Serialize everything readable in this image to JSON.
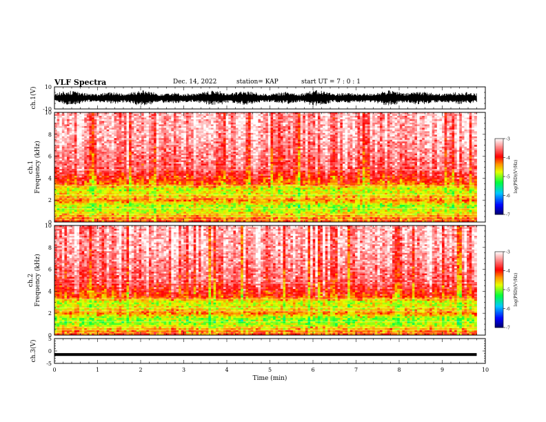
{
  "header": {
    "title": "VLF Spectra",
    "date": "Dec. 14, 2022",
    "station": "station= KAP",
    "start": "start  UT =   7 : 0  : 1"
  },
  "chart_data": [
    {
      "type": "line",
      "name": "waveform-ch1",
      "ylabel": "ch.1(V)",
      "ylim": [
        -10,
        10
      ],
      "yticks": [
        "10",
        "-10"
      ],
      "xlim": [
        0,
        10
      ],
      "data_extent": [
        0,
        9.8
      ],
      "description_values": {
        "mean": 0,
        "envelope": [
          -7,
          7
        ]
      }
    },
    {
      "type": "heatmap",
      "name": "spectrogram-ch1",
      "ylabel": "ch.1",
      "ylabel2": "Frequency (kHz)",
      "ylim": [
        0,
        10
      ],
      "yticks": [
        "0",
        "2",
        "4",
        "6",
        "8",
        "10"
      ],
      "xlim": [
        0,
        10
      ],
      "data_extent": [
        0,
        9.8
      ],
      "freq_profile_log_psd": {
        "kHz": [
          0,
          0.5,
          1,
          1.5,
          2,
          2.5,
          3,
          3.5,
          5,
          8,
          10
        ],
        "value": [
          -4.1,
          -4.4,
          -4.8,
          -4.9,
          -4.3,
          -4.7,
          -4.8,
          -4.2,
          -3.6,
          -3.3,
          -3.3
        ]
      },
      "colorbar": {
        "label": "log(PSD)(V²/Hz)",
        "ticks": [
          "-3",
          "-4",
          "-5",
          "-6",
          "-7"
        ],
        "range": [
          -7,
          -3
        ]
      }
    },
    {
      "type": "heatmap",
      "name": "spectrogram-ch2",
      "ylabel": "ch.2",
      "ylabel2": "Frequency (kHz)",
      "ylim": [
        0,
        10
      ],
      "yticks": [
        "0",
        "2",
        "4",
        "6",
        "8",
        "10"
      ],
      "xlim": [
        0,
        10
      ],
      "data_extent": [
        0,
        9.8
      ],
      "freq_profile_log_psd": {
        "kHz": [
          0,
          0.5,
          1,
          1.5,
          2,
          2.5,
          3,
          3.5,
          5,
          8,
          10
        ],
        "value": [
          -4.1,
          -4.4,
          -4.9,
          -5.0,
          -4.3,
          -4.7,
          -4.8,
          -4.1,
          -3.6,
          -3.3,
          -3.3
        ]
      },
      "colorbar": {
        "label": "log(PSD)(V²/Hz)",
        "ticks": [
          "-3",
          "-4",
          "-5",
          "-6",
          "-7"
        ],
        "range": [
          -7,
          -3
        ]
      }
    },
    {
      "type": "line",
      "name": "waveform-ch3",
      "ylabel": "ch.3(V)",
      "ylim": [
        -5,
        5
      ],
      "yticks": [
        "5",
        "0",
        "-5"
      ],
      "xlabel": "Time (min)",
      "xticks": [
        "0",
        "1",
        "2",
        "3",
        "4",
        "5",
        "6",
        "7",
        "8",
        "9",
        "10"
      ],
      "xlim": [
        0,
        10
      ],
      "data_extent": [
        0,
        9.8
      ],
      "description_values": {
        "mean": -1.5,
        "envelope": [
          -2,
          -1
        ]
      }
    }
  ],
  "colors": {
    "colormap": [
      "#000080",
      "#0000ff",
      "#00ccff",
      "#00ff00",
      "#ffff00",
      "#ff0000",
      "#ffffff"
    ],
    "axis": "#000000",
    "trace": "#000000"
  }
}
